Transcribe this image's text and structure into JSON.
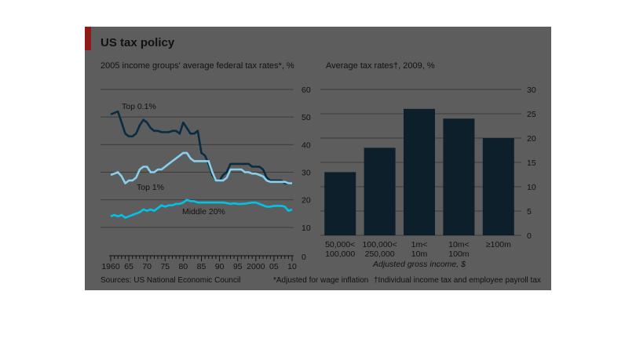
{
  "figure": {
    "title": "US tax policy",
    "sources": "Sources: US National Economic Council",
    "footnote_1": "*Adjusted for wage inflation",
    "footnote_2": "†Individual income tax and employee payroll tax"
  },
  "colors": {
    "background": "#5d5d5d",
    "accent": "#8f1a1a",
    "bar": "#0c1f2b",
    "top_0_1": "#082c40",
    "top_1": "#8ad0ec",
    "middle_20": "#00c3e6"
  },
  "chart_data": [
    {
      "type": "line",
      "title": "2005 income groups' average federal tax rates*, %",
      "ylim": [
        0,
        60
      ],
      "yticks": [
        0,
        10,
        20,
        30,
        40,
        50,
        60
      ],
      "xlim": [
        1960,
        2010
      ],
      "xtick_labels": [
        "1960",
        "65",
        "70",
        "75",
        "80",
        "85",
        "90",
        "95",
        "2000",
        "05",
        "10"
      ],
      "x": [
        1960,
        1961,
        1962,
        1963,
        1964,
        1965,
        1966,
        1967,
        1968,
        1969,
        1970,
        1971,
        1972,
        1973,
        1974,
        1975,
        1976,
        1977,
        1978,
        1979,
        1980,
        1981,
        1982,
        1983,
        1984,
        1985,
        1986,
        1987,
        1988,
        1989,
        1990,
        1991,
        1992,
        1993,
        1994,
        1995,
        1996,
        1997,
        1998,
        1999,
        2000,
        2001,
        2002,
        2003,
        2004,
        2005,
        2006,
        2007,
        2008,
        2009,
        2010
      ],
      "series": [
        {
          "name": "Top 0.1%",
          "values": [
            51,
            51.5,
            52,
            48,
            44,
            43,
            43,
            44,
            47,
            49,
            48,
            46,
            45,
            45,
            44.5,
            44.5,
            44.5,
            45,
            45,
            44,
            48,
            46,
            44,
            44,
            45,
            37,
            36,
            33,
            29,
            27,
            27,
            29,
            30,
            33,
            33,
            33,
            33,
            33,
            33,
            32,
            32,
            32,
            31,
            28,
            27,
            27,
            27,
            27,
            26,
            26,
            26
          ]
        },
        {
          "name": "Top 1%",
          "values": [
            29,
            29.5,
            30,
            28.5,
            26,
            27,
            27,
            28,
            31,
            32,
            32,
            30,
            30,
            31,
            31,
            32,
            33,
            34,
            35,
            36,
            37,
            37,
            35,
            34,
            34,
            34,
            34,
            34,
            30,
            27,
            27,
            27,
            28,
            31,
            31,
            31,
            31,
            30,
            30,
            29.5,
            29.5,
            29,
            28.5,
            27,
            26.5,
            26.5,
            26.5,
            26.5,
            26.5,
            26,
            26
          ]
        },
        {
          "name": "Middle 20%",
          "values": [
            14,
            14.5,
            14,
            14.5,
            13.5,
            14,
            14.5,
            15,
            15.5,
            16.5,
            16,
            16.5,
            16,
            17,
            18,
            17.5,
            18,
            18,
            18.5,
            18.5,
            19,
            20,
            19.5,
            19.5,
            19,
            19,
            19,
            19,
            19,
            19,
            19,
            19,
            18.8,
            18.5,
            18.7,
            18.5,
            18.5,
            18.6,
            18.8,
            19,
            19,
            18.5,
            18,
            17.5,
            17.5,
            17.8,
            17.8,
            17.8,
            17.5,
            16,
            16.5
          ]
        }
      ]
    },
    {
      "type": "bar",
      "title": "Average tax rates†, 2009, %",
      "xlabel": "Adjusted gross income, $",
      "ylim": [
        0,
        30
      ],
      "yticks": [
        0,
        5,
        10,
        15,
        20,
        25,
        30
      ],
      "categories": [
        [
          "50,000<",
          "100,000"
        ],
        [
          "100,000<",
          "250,000"
        ],
        [
          "1m<",
          "10m"
        ],
        [
          "10m<",
          "100m"
        ],
        [
          "≥100m"
        ]
      ],
      "values": [
        13,
        18,
        26,
        24,
        20
      ]
    }
  ]
}
